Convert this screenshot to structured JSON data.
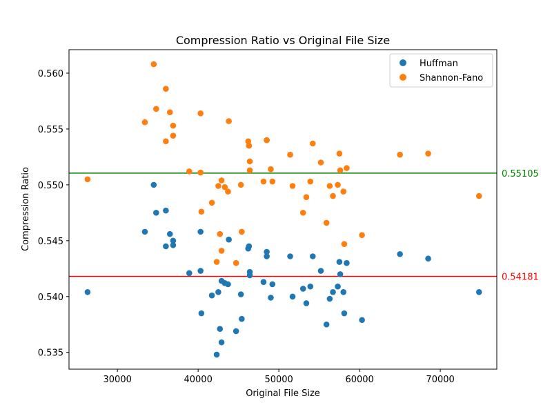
{
  "chart_data": {
    "type": "scatter",
    "title": "Compression Ratio vs Original File Size",
    "xlabel": "Original File Size",
    "ylabel": "Compression Ratio",
    "xlim": [
      24000,
      77000
    ],
    "ylim": [
      0.5335,
      0.5621
    ],
    "xticks": [
      "30000",
      "40000",
      "50000",
      "60000",
      "70000"
    ],
    "xtick_values": [
      30000,
      40000,
      50000,
      60000,
      70000
    ],
    "yticks": [
      "0.535",
      "0.540",
      "0.545",
      "0.550",
      "0.555",
      "0.560"
    ],
    "ytick_values": [
      0.535,
      0.54,
      0.545,
      0.55,
      0.555,
      0.56
    ],
    "grid": false,
    "legend_position": "top-right",
    "series": [
      {
        "name": "Huffman",
        "color": "#1f77b4",
        "points": [
          [
            26300,
            0.5404
          ],
          [
            33400,
            0.5458
          ],
          [
            34500,
            0.55
          ],
          [
            34800,
            0.5475
          ],
          [
            36000,
            0.5477
          ],
          [
            36000,
            0.5445
          ],
          [
            36500,
            0.5456
          ],
          [
            36900,
            0.545
          ],
          [
            36900,
            0.5446
          ],
          [
            38900,
            0.5421
          ],
          [
            40300,
            0.5458
          ],
          [
            40300,
            0.5423
          ],
          [
            40400,
            0.5385
          ],
          [
            41700,
            0.5401
          ],
          [
            42300,
            0.5348
          ],
          [
            42500,
            0.5404
          ],
          [
            42700,
            0.5371
          ],
          [
            42900,
            0.5359
          ],
          [
            42900,
            0.5414
          ],
          [
            43300,
            0.5412
          ],
          [
            43700,
            0.5411
          ],
          [
            43800,
            0.5451
          ],
          [
            44700,
            0.5369
          ],
          [
            45300,
            0.5402
          ],
          [
            45400,
            0.538
          ],
          [
            46200,
            0.5443
          ],
          [
            46300,
            0.5445
          ],
          [
            46400,
            0.5419
          ],
          [
            46400,
            0.5422
          ],
          [
            48100,
            0.5413
          ],
          [
            48500,
            0.544
          ],
          [
            48500,
            0.5436
          ],
          [
            49000,
            0.5399
          ],
          [
            49200,
            0.5411
          ],
          [
            51400,
            0.5436
          ],
          [
            51700,
            0.54
          ],
          [
            53000,
            0.5407
          ],
          [
            53400,
            0.5394
          ],
          [
            53900,
            0.5409
          ],
          [
            54200,
            0.5436
          ],
          [
            55200,
            0.5423
          ],
          [
            55900,
            0.5375
          ],
          [
            56300,
            0.5398
          ],
          [
            56700,
            0.5404
          ],
          [
            57300,
            0.5409
          ],
          [
            57500,
            0.5431
          ],
          [
            57600,
            0.542
          ],
          [
            58000,
            0.5404
          ],
          [
            58100,
            0.5385
          ],
          [
            58400,
            0.543
          ],
          [
            60300,
            0.5379
          ],
          [
            65000,
            0.5438
          ],
          [
            68500,
            0.5434
          ],
          [
            74800,
            0.5404
          ]
        ]
      },
      {
        "name": "Shannon-Fano",
        "color": "#ff7f0e",
        "points": [
          [
            26300,
            0.5505
          ],
          [
            33400,
            0.5556
          ],
          [
            34500,
            0.5608
          ],
          [
            34800,
            0.5568
          ],
          [
            36000,
            0.5586
          ],
          [
            36000,
            0.5539
          ],
          [
            36500,
            0.5565
          ],
          [
            36900,
            0.5553
          ],
          [
            36900,
            0.5544
          ],
          [
            38900,
            0.5512
          ],
          [
            40300,
            0.5564
          ],
          [
            40300,
            0.5511
          ],
          [
            40400,
            0.5476
          ],
          [
            41700,
            0.5484
          ],
          [
            42300,
            0.5431
          ],
          [
            42500,
            0.5499
          ],
          [
            42700,
            0.5456
          ],
          [
            42900,
            0.5441
          ],
          [
            42900,
            0.5504
          ],
          [
            43300,
            0.5498
          ],
          [
            43700,
            0.5494
          ],
          [
            43800,
            0.5557
          ],
          [
            44700,
            0.543
          ],
          [
            45300,
            0.55
          ],
          [
            45400,
            0.5458
          ],
          [
            46200,
            0.5539
          ],
          [
            46300,
            0.5535
          ],
          [
            46400,
            0.5513
          ],
          [
            46400,
            0.5521
          ],
          [
            48100,
            0.5503
          ],
          [
            48500,
            0.554
          ],
          [
            48500,
            0.554
          ],
          [
            49000,
            0.5514
          ],
          [
            49200,
            0.5503
          ],
          [
            51400,
            0.5527
          ],
          [
            51700,
            0.5499
          ],
          [
            53000,
            0.5475
          ],
          [
            53400,
            0.5489
          ],
          [
            53900,
            0.5503
          ],
          [
            54200,
            0.5537
          ],
          [
            55200,
            0.552
          ],
          [
            55900,
            0.5466
          ],
          [
            56300,
            0.5499
          ],
          [
            56700,
            0.549
          ],
          [
            57300,
            0.55
          ],
          [
            57500,
            0.5528
          ],
          [
            57600,
            0.5513
          ],
          [
            58000,
            0.5494
          ],
          [
            58100,
            0.5447
          ],
          [
            58400,
            0.5515
          ],
          [
            60300,
            0.5455
          ],
          [
            65000,
            0.5527
          ],
          [
            68500,
            0.5528
          ],
          [
            74800,
            0.549
          ]
        ]
      }
    ],
    "reference_lines": [
      {
        "value": 0.55105,
        "label": "0.55105",
        "color": "#008000"
      },
      {
        "value": 0.54181,
        "label": "0.54181",
        "color": "#ff0000"
      }
    ]
  }
}
